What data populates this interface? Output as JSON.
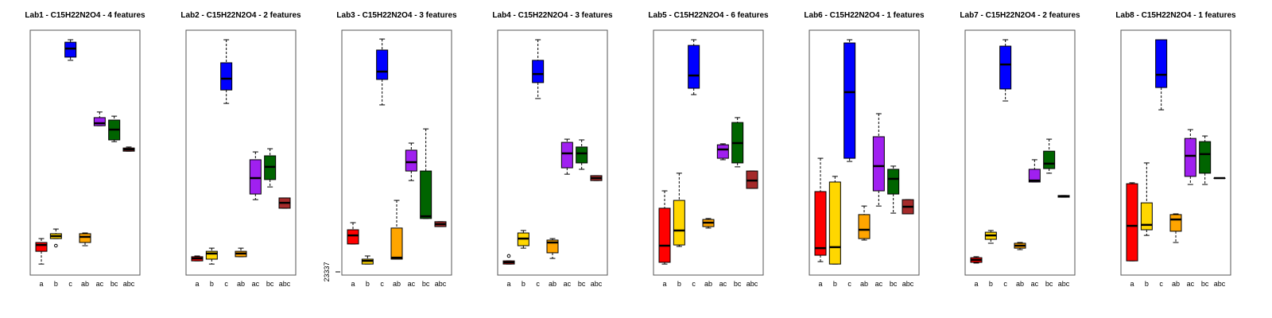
{
  "chart_data": [
    {
      "type": "box",
      "title": "Lab1 - C15H22N2O4 - 4 features",
      "categories": [
        "a",
        "b",
        "c",
        "ab",
        "ac",
        "bc",
        "abc"
      ],
      "colors": [
        "#ff0000",
        "#ffd700",
        "#0000ff",
        "#ffa500",
        "#a020f0",
        "#006400",
        "#a52a2a"
      ],
      "ylim": [
        0,
        100
      ],
      "min": [
        4.5,
        14.9,
        87.7,
        12.0,
        61.0,
        54.5,
        50.6
      ],
      "q1": [
        9.7,
        14.9,
        89.0,
        13.3,
        61.0,
        55.2,
        50.6
      ],
      "median": [
        12.3,
        15.9,
        92.5,
        15.6,
        62.0,
        59.4,
        51.3
      ],
      "q3": [
        13.3,
        16.9,
        95.1,
        16.9,
        64.3,
        63.3,
        51.9
      ],
      "max": [
        14.9,
        18.8,
        96.1,
        17.2,
        66.6,
        64.9,
        52.3
      ],
      "outliers": [
        [],
        [
          12.0
        ],
        [],
        [],
        [],
        [],
        []
      ]
    },
    {
      "type": "box",
      "title": "Lab2 - C15H22N2O4 - 2 features",
      "categories": [
        "a",
        "b",
        "c",
        "ab",
        "ac",
        "bc",
        "abc"
      ],
      "colors": [
        "#ff0000",
        "#ffd700",
        "#0000ff",
        "#ffa500",
        "#a020f0",
        "#006400",
        "#a52a2a"
      ],
      "ylim": [
        0,
        100
      ],
      "min": [
        5.8,
        4.5,
        70.1,
        7.5,
        30.8,
        36.0,
        27.3
      ],
      "q1": [
        5.8,
        6.5,
        75.6,
        7.5,
        33.1,
        39.0,
        27.3
      ],
      "median": [
        6.8,
        8.8,
        80.2,
        8.8,
        39.6,
        44.2,
        29.5
      ],
      "q3": [
        7.5,
        9.7,
        86.7,
        9.7,
        47.1,
        48.7,
        31.5
      ],
      "max": [
        7.8,
        11.0,
        96.1,
        11.0,
        50.3,
        51.6,
        31.5
      ],
      "outliers": [
        [],
        [],
        [],
        [],
        [],
        [],
        []
      ]
    },
    {
      "type": "box",
      "title": "Lab3 - C15H22N2O4 - 3 features",
      "categories": [
        "a",
        "b",
        "c",
        "ab",
        "ac",
        "bc",
        "abc"
      ],
      "colors": [
        "#ff0000",
        "#ffd700",
        "#0000ff",
        "#ffa500",
        "#a020f0",
        "#006400",
        "#a52a2a"
      ],
      "ylim": [
        0,
        100
      ],
      "yticks": [
        {
          "value": 1.3,
          "label": "23337"
        }
      ],
      "min": [
        12.7,
        4.5,
        69.5,
        6.5,
        38.6,
        23.1,
        19.8
      ],
      "q1": [
        12.7,
        4.5,
        79.9,
        6.5,
        42.5,
        23.1,
        19.8
      ],
      "median": [
        16.2,
        5.8,
        83.1,
        7.1,
        46.1,
        24.0,
        20.8
      ],
      "q3": [
        18.5,
        6.5,
        91.9,
        19.2,
        51.0,
        42.5,
        21.8
      ],
      "max": [
        21.4,
        7.8,
        96.4,
        30.5,
        53.9,
        59.7,
        21.8
      ],
      "outliers": [
        [],
        [],
        [],
        [],
        [],
        [],
        []
      ]
    },
    {
      "type": "box",
      "title": "Lab4 - C15H22N2O4 - 3 features",
      "categories": [
        "a",
        "b",
        "c",
        "ab",
        "ac",
        "bc",
        "abc"
      ],
      "colors": [
        "#ff0000",
        "#ffd700",
        "#0000ff",
        "#ffa500",
        "#a020f0",
        "#006400",
        "#a52a2a"
      ],
      "ylim": [
        0,
        100
      ],
      "min": [
        4.5,
        11.0,
        72.1,
        6.8,
        41.2,
        43.2,
        38.6
      ],
      "q1": [
        4.5,
        12.0,
        78.6,
        9.1,
        43.8,
        45.8,
        38.6
      ],
      "median": [
        5.2,
        14.9,
        82.1,
        13.3,
        49.7,
        49.7,
        39.6
      ],
      "q3": [
        5.8,
        17.2,
        87.7,
        14.3,
        54.2,
        52.3,
        40.6
      ],
      "max": [
        5.8,
        18.2,
        96.1,
        14.9,
        55.5,
        55.2,
        40.6
      ],
      "outliers": [
        [
          7.8
        ],
        [],
        [],
        [],
        [],
        [],
        []
      ]
    },
    {
      "type": "box",
      "title": "Lab5 - C15H22N2O4 - 6 features",
      "categories": [
        "a",
        "b",
        "c",
        "ab",
        "ac",
        "bc",
        "abc"
      ],
      "colors": [
        "#ff0000",
        "#ffd700",
        "#0000ff",
        "#ffa500",
        "#a020f0",
        "#006400",
        "#a52a2a"
      ],
      "ylim": [
        0,
        100
      ],
      "min": [
        4.5,
        11.7,
        73.7,
        19.2,
        47.1,
        44.2,
        35.4
      ],
      "q1": [
        5.2,
        12.3,
        76.3,
        19.8,
        47.7,
        45.8,
        35.4
      ],
      "median": [
        12.0,
        18.2,
        81.5,
        21.4,
        51.3,
        53.9,
        38.6
      ],
      "q3": [
        27.3,
        30.5,
        93.8,
        22.7,
        53.2,
        62.3,
        42.5
      ],
      "max": [
        34.4,
        41.6,
        96.1,
        23.1,
        53.6,
        64.3,
        42.5
      ],
      "outliers": [
        [],
        [],
        [],
        [],
        [],
        [],
        []
      ]
    },
    {
      "type": "box",
      "title": "Lab6 - C15H22N2O4 - 1 features",
      "categories": [
        "a",
        "b",
        "c",
        "ab",
        "ac",
        "bc",
        "abc"
      ],
      "colors": [
        "#ff0000",
        "#ffd700",
        "#0000ff",
        "#ffa500",
        "#a020f0",
        "#006400",
        "#a52a2a"
      ],
      "ylim": [
        0,
        100
      ],
      "min": [
        5.5,
        4.5,
        46.4,
        14.3,
        28.2,
        25.3,
        25.0
      ],
      "q1": [
        8.1,
        4.5,
        47.7,
        14.9,
        34.4,
        33.1,
        25.0
      ],
      "median": [
        11.0,
        11.4,
        74.7,
        18.5,
        44.5,
        39.3,
        27.9
      ],
      "q3": [
        34.1,
        38.0,
        94.8,
        24.7,
        56.5,
        43.2,
        30.8
      ],
      "max": [
        47.7,
        40.3,
        96.1,
        28.2,
        65.9,
        44.5,
        30.8
      ],
      "outliers": [
        [],
        [],
        [],
        [],
        [],
        [],
        []
      ]
    },
    {
      "type": "box",
      "title": "Lab7 - C15H22N2O4 - 2 features",
      "categories": [
        "a",
        "b",
        "c",
        "ab",
        "ac",
        "bc",
        "abc"
      ],
      "colors": [
        "#ff0000",
        "#ffd700",
        "#0000ff",
        "#ffa500",
        "#a020f0",
        "#006400",
        "#a52a2a"
      ],
      "ylim": [
        0,
        100
      ],
      "min": [
        4.9,
        13.0,
        71.1,
        10.4,
        38.0,
        41.6,
        31.8
      ],
      "q1": [
        5.2,
        14.6,
        76.0,
        11.0,
        38.0,
        43.5,
        31.8
      ],
      "median": [
        6.2,
        16.2,
        86.0,
        12.0,
        38.6,
        45.5,
        32.1
      ],
      "q3": [
        7.1,
        17.5,
        93.5,
        13.0,
        43.2,
        50.6,
        32.5
      ],
      "max": [
        7.5,
        18.2,
        96.1,
        13.3,
        47.1,
        55.5,
        32.5
      ],
      "outliers": [
        [],
        [],
        [],
        [],
        [],
        [],
        []
      ]
    },
    {
      "type": "box",
      "title": "Lab8 - C15H22N2O4 - 1 features",
      "categories": [
        "a",
        "b",
        "c",
        "ab",
        "ac",
        "bc",
        "abc"
      ],
      "colors": [
        "#ff0000",
        "#ffd700",
        "#0000ff",
        "#ffa500",
        "#a020f0",
        "#006400",
        "#a52a2a"
      ],
      "ylim": [
        0,
        100
      ],
      "min": [
        5.8,
        16.2,
        67.5,
        13.3,
        37.0,
        37.0,
        39.6
      ],
      "q1": [
        5.8,
        18.5,
        76.6,
        17.9,
        40.3,
        41.6,
        39.6
      ],
      "median": [
        20.1,
        20.5,
        81.8,
        22.7,
        48.7,
        49.4,
        39.6
      ],
      "q3": [
        37.3,
        29.5,
        96.1,
        24.7,
        55.8,
        54.5,
        39.6
      ],
      "max": [
        37.7,
        45.8,
        96.1,
        25.0,
        59.4,
        56.8,
        39.6
      ],
      "outliers": [
        [],
        [],
        [],
        [],
        [],
        [],
        []
      ]
    }
  ]
}
